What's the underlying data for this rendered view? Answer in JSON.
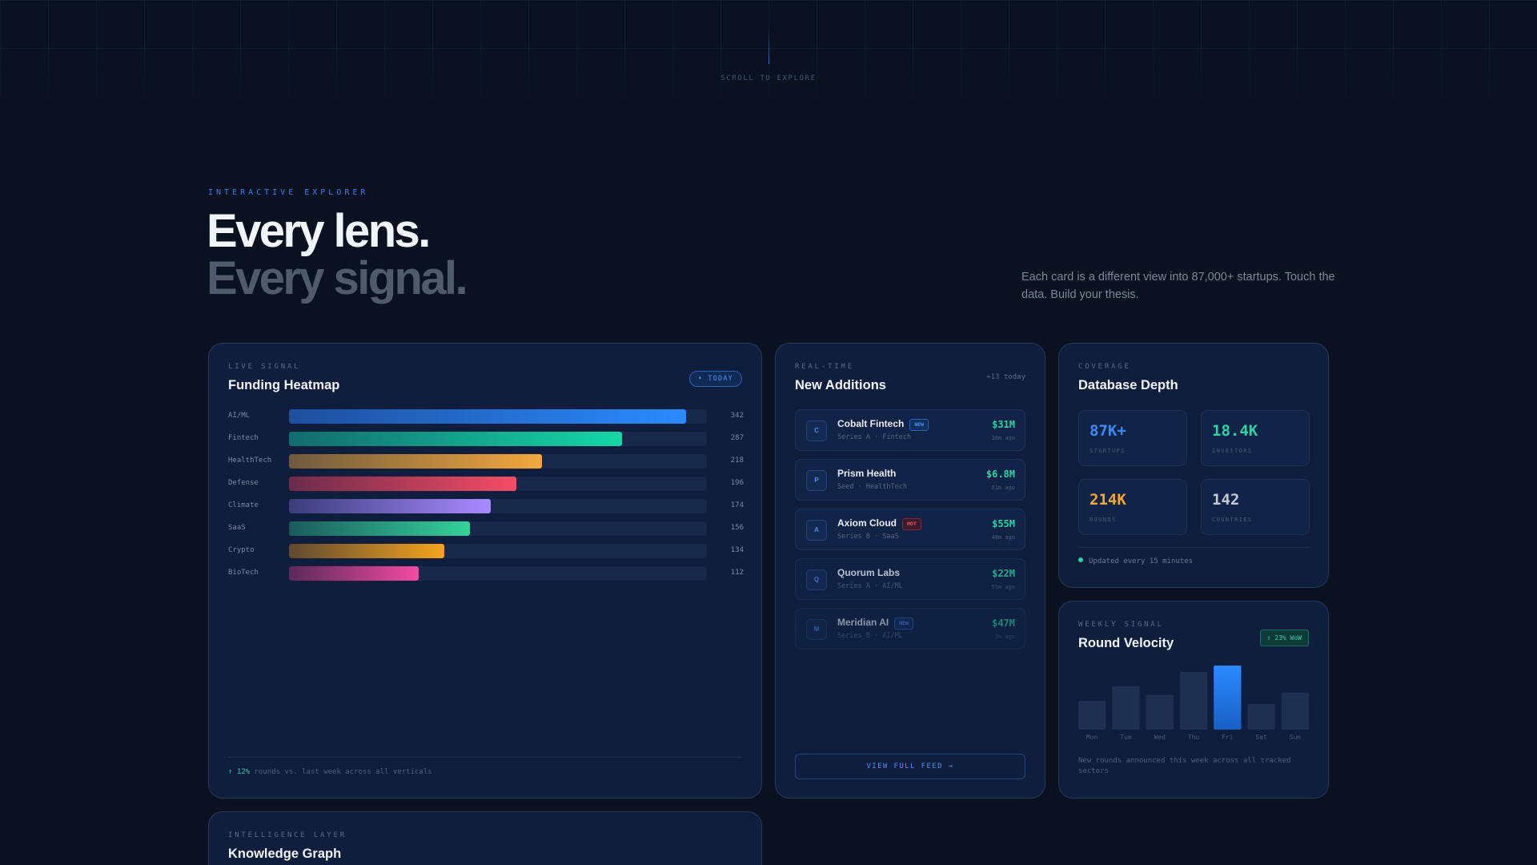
{
  "hero": {
    "scroll_hint": "SCROLL TO EXPLORE",
    "eyebrow": "INTERACTIVE EXPLORER",
    "headline_line1": "Every lens.",
    "headline_line2": "Every signal.",
    "intro": "Each card is a different view into 87,000+ startups. Touch the data. Build your thesis."
  },
  "heatmap": {
    "eyebrow": "LIVE SIGNAL",
    "title": "Funding Heatmap",
    "badge": "• TODAY",
    "max": 360,
    "rows": [
      {
        "label": "AI/ML",
        "count": 342,
        "gradient": [
          "#1f4f9e",
          "#2a8bff"
        ]
      },
      {
        "label": "Fintech",
        "count": 287,
        "gradient": [
          "#126b6e",
          "#14d8a6"
        ]
      },
      {
        "label": "HealthTech",
        "count": 218,
        "gradient": [
          "#6e5a3e",
          "#f3a83c"
        ]
      },
      {
        "label": "Defense",
        "count": 196,
        "gradient": [
          "#6a2b4a",
          "#f64d66"
        ]
      },
      {
        "label": "Climate",
        "count": 174,
        "gradient": [
          "#3a3d7a",
          "#a98bff"
        ]
      },
      {
        "label": "SaaS",
        "count": 156,
        "gradient": [
          "#1c5a5c",
          "#34d39a"
        ]
      },
      {
        "label": "Crypto",
        "count": 134,
        "gradient": [
          "#5e4a30",
          "#f5a41c"
        ]
      },
      {
        "label": "BioTech",
        "count": 112,
        "gradient": [
          "#5b2a5a",
          "#f24aa2"
        ]
      }
    ],
    "footer_change": "↑ 12%",
    "footer_text": " rounds vs. last week across all verticals"
  },
  "additions": {
    "eyebrow": "REAL-TIME",
    "title": "New Additions",
    "today_count": "+13 today",
    "items": [
      {
        "initial": "C",
        "name": "Cobalt Fintech",
        "tag": "NEW",
        "sub": "Series A · Fintech",
        "amount": "$31M",
        "time": "38m ago"
      },
      {
        "initial": "P",
        "name": "Prism Health",
        "tag": "",
        "sub": "Seed · HealthTech",
        "amount": "$6.8M",
        "time": "51m ago"
      },
      {
        "initial": "A",
        "name": "Axiom Cloud",
        "tag": "HOT",
        "sub": "Series B · SaaS",
        "amount": "$55M",
        "time": "48m ago"
      },
      {
        "initial": "Q",
        "name": "Quorum Labs",
        "tag": "",
        "sub": "Series A · AI/ML",
        "amount": "$22M",
        "time": "51m ago"
      },
      {
        "initial": "M",
        "name": "Meridian AI",
        "tag": "NEW",
        "sub": "Series B · AI/ML",
        "amount": "$47M",
        "time": "3h ago"
      }
    ],
    "view_feed": "VIEW FULL FEED →"
  },
  "database": {
    "eyebrow": "COVERAGE",
    "title": "Database Depth",
    "stats": [
      {
        "value": "87K+",
        "label": "STARTUPS",
        "color": "#3a8bf7"
      },
      {
        "value": "18.4K",
        "label": "INVESTORS",
        "color": "#2ad4a4"
      },
      {
        "value": "214K",
        "label": "ROUNDS",
        "color": "#f3a83c"
      },
      {
        "value": "142",
        "label": "COUNTRIES",
        "color": "#c3cad6"
      }
    ],
    "status": "Updated every 15 minutes"
  },
  "velocity": {
    "eyebrow": "WEEKLY SIGNAL",
    "title": "Round Velocity",
    "badge": "↑ 23% WoW",
    "footer": "New rounds announced this week across all tracked sectors",
    "chart_data": {
      "type": "bar",
      "categories": [
        "Mon",
        "Tue",
        "Wed",
        "Thu",
        "Fri",
        "Sat",
        "Sun"
      ],
      "values": [
        45,
        68,
        54,
        90,
        100,
        40,
        58
      ],
      "highlight": "Fri",
      "xlabel": "",
      "ylabel": "",
      "ylim": [
        0,
        100
      ]
    }
  },
  "knowledge": {
    "eyebrow": "INTELLIGENCE LAYER",
    "title": "Knowledge Graph"
  }
}
